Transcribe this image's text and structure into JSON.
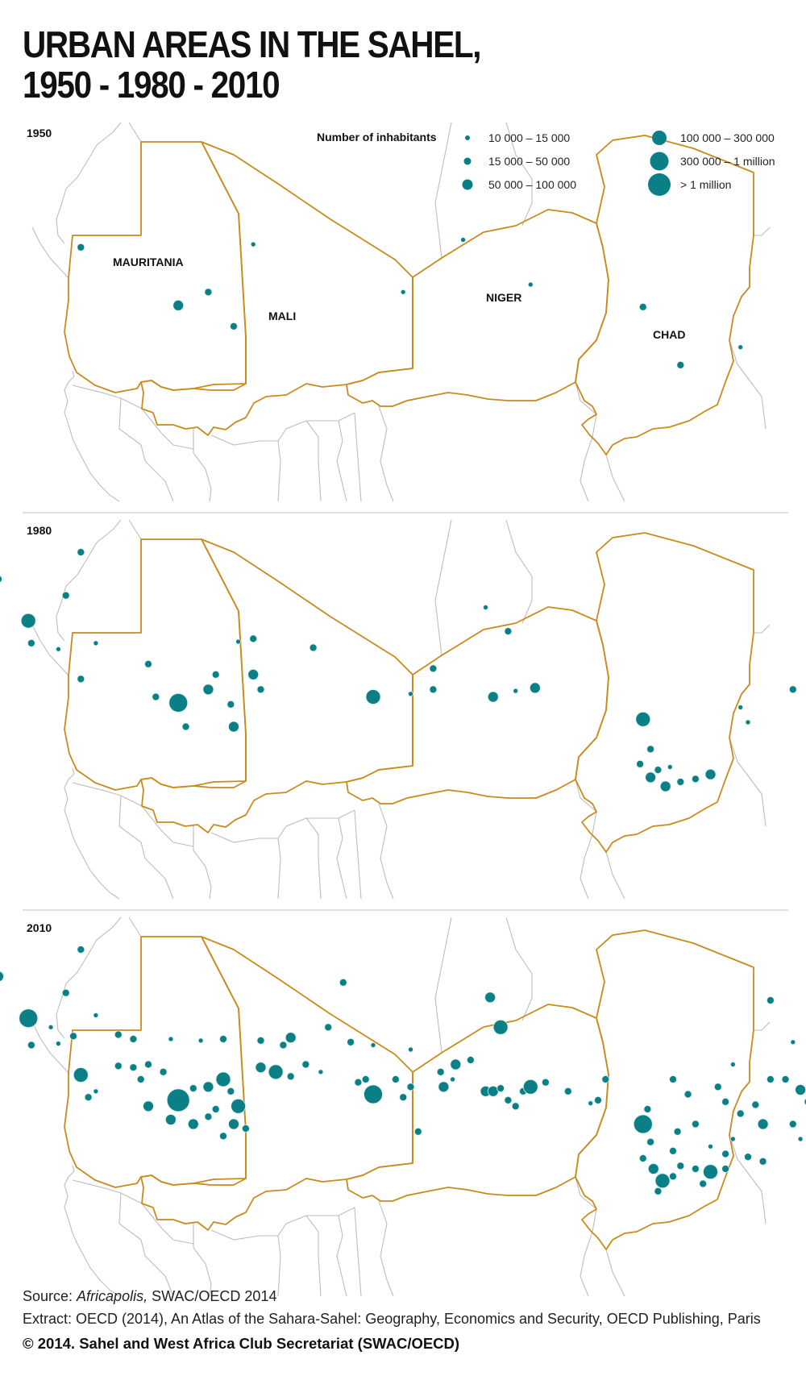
{
  "title_lines": [
    "URBAN AREAS IN THE SAHEL,",
    "1950 - 1980 - 2010"
  ],
  "legend": {
    "title": "Number of inhabitants",
    "classes": [
      {
        "label": "10 000 – 15 000",
        "size_class": 1
      },
      {
        "label": "15 000 – 50 000",
        "size_class": 2
      },
      {
        "label": "50 000 – 100 000",
        "size_class": 3
      },
      {
        "label": "100 000 – 300 000",
        "size_class": 4
      },
      {
        "label": "300 000 – 1 million",
        "size_class": 5
      },
      {
        "label": "> 1 million",
        "size_class": 6
      }
    ]
  },
  "colors": {
    "city_fill": "#0b7f86",
    "city_stroke": "#d9eeee",
    "sahel_border": "#c98a1e",
    "other_border": "#bdbdbd",
    "divider": "#cfcfcf"
  },
  "country_labels": [
    "MAURITANIA",
    "MALI",
    "NIGER",
    "CHAD"
  ],
  "panels": [
    {
      "year": "1950",
      "show_labels": true,
      "cities": [
        {
          "lon": -14.5,
          "lat": 16.5,
          "size_class": 2
        },
        {
          "lon": -8.0,
          "lat": 12.6,
          "size_class": 3
        },
        {
          "lon": -6.0,
          "lat": 13.5,
          "size_class": 2
        },
        {
          "lon": -3.0,
          "lat": 16.7,
          "size_class": 1
        },
        {
          "lon": -4.3,
          "lat": 11.2,
          "size_class": 2
        },
        {
          "lon": 7.0,
          "lat": 13.5,
          "size_class": 1
        },
        {
          "lon": 11.0,
          "lat": 17.0,
          "size_class": 1
        },
        {
          "lon": 15.5,
          "lat": 14.0,
          "size_class": 1
        },
        {
          "lon": 23.0,
          "lat": 12.5,
          "size_class": 2
        },
        {
          "lon": 25.5,
          "lat": 8.6,
          "size_class": 2
        },
        {
          "lon": 29.5,
          "lat": 9.8,
          "size_class": 1
        }
      ]
    },
    {
      "year": "1980",
      "show_labels": false,
      "cities": [
        {
          "lon": -14.5,
          "lat": 22.7,
          "size_class": 2
        },
        {
          "lon": -20.0,
          "lat": 20.9,
          "size_class": 2
        },
        {
          "lon": -15.5,
          "lat": 19.8,
          "size_class": 2
        },
        {
          "lon": -18.0,
          "lat": 18.1,
          "size_class": 4
        },
        {
          "lon": -17.8,
          "lat": 16.6,
          "size_class": 2
        },
        {
          "lon": -16.0,
          "lat": 16.2,
          "size_class": 1
        },
        {
          "lon": -13.5,
          "lat": 16.6,
          "size_class": 1
        },
        {
          "lon": -10.0,
          "lat": 15.2,
          "size_class": 2
        },
        {
          "lon": -14.5,
          "lat": 14.2,
          "size_class": 2
        },
        {
          "lon": -9.5,
          "lat": 13.0,
          "size_class": 2
        },
        {
          "lon": -8.0,
          "lat": 12.6,
          "size_class": 5
        },
        {
          "lon": -6.0,
          "lat": 13.5,
          "size_class": 3
        },
        {
          "lon": -5.5,
          "lat": 14.5,
          "size_class": 2
        },
        {
          "lon": -4.0,
          "lat": 16.7,
          "size_class": 1
        },
        {
          "lon": -3.0,
          "lat": 16.9,
          "size_class": 2
        },
        {
          "lon": -3.0,
          "lat": 14.5,
          "size_class": 3
        },
        {
          "lon": -2.5,
          "lat": 13.5,
          "size_class": 2
        },
        {
          "lon": -4.5,
          "lat": 12.5,
          "size_class": 2
        },
        {
          "lon": -7.5,
          "lat": 11.0,
          "size_class": 2
        },
        {
          "lon": -4.3,
          "lat": 11.0,
          "size_class": 3
        },
        {
          "lon": 1.0,
          "lat": 16.3,
          "size_class": 2
        },
        {
          "lon": 5.0,
          "lat": 13.0,
          "size_class": 4
        },
        {
          "lon": 7.5,
          "lat": 13.2,
          "size_class": 1
        },
        {
          "lon": 9.0,
          "lat": 13.5,
          "size_class": 2
        },
        {
          "lon": 9.0,
          "lat": 14.9,
          "size_class": 2
        },
        {
          "lon": 13.0,
          "lat": 13.0,
          "size_class": 3
        },
        {
          "lon": 14.5,
          "lat": 13.4,
          "size_class": 1
        },
        {
          "lon": 15.8,
          "lat": 13.6,
          "size_class": 3
        },
        {
          "lon": 14.0,
          "lat": 17.4,
          "size_class": 2
        },
        {
          "lon": 12.5,
          "lat": 19.0,
          "size_class": 1
        },
        {
          "lon": 23.0,
          "lat": 11.5,
          "size_class": 4
        },
        {
          "lon": 23.5,
          "lat": 9.5,
          "size_class": 2
        },
        {
          "lon": 22.8,
          "lat": 8.5,
          "size_class": 2
        },
        {
          "lon": 24.0,
          "lat": 8.1,
          "size_class": 2
        },
        {
          "lon": 24.8,
          "lat": 8.3,
          "size_class": 1
        },
        {
          "lon": 23.5,
          "lat": 7.6,
          "size_class": 3
        },
        {
          "lon": 24.5,
          "lat": 7.0,
          "size_class": 3
        },
        {
          "lon": 25.5,
          "lat": 7.3,
          "size_class": 2
        },
        {
          "lon": 26.5,
          "lat": 7.5,
          "size_class": 2
        },
        {
          "lon": 27.5,
          "lat": 7.8,
          "size_class": 3
        },
        {
          "lon": 29.5,
          "lat": 12.3,
          "size_class": 1
        },
        {
          "lon": 30.0,
          "lat": 11.3,
          "size_class": 1
        },
        {
          "lon": 33.0,
          "lat": 13.5,
          "size_class": 2
        }
      ]
    },
    {
      "year": "2010",
      "show_labels": false,
      "cities": [
        {
          "lon": -14.5,
          "lat": 22.7,
          "size_class": 2
        },
        {
          "lon": -20.0,
          "lat": 20.9,
          "size_class": 3
        },
        {
          "lon": -15.5,
          "lat": 19.8,
          "size_class": 2
        },
        {
          "lon": -18.0,
          "lat": 18.1,
          "size_class": 5
        },
        {
          "lon": -16.5,
          "lat": 17.5,
          "size_class": 1
        },
        {
          "lon": -15.0,
          "lat": 16.9,
          "size_class": 2
        },
        {
          "lon": -16.0,
          "lat": 16.4,
          "size_class": 1
        },
        {
          "lon": -13.5,
          "lat": 18.3,
          "size_class": 1
        },
        {
          "lon": -12.0,
          "lat": 17.0,
          "size_class": 2
        },
        {
          "lon": -11.0,
          "lat": 16.7,
          "size_class": 2
        },
        {
          "lon": -17.8,
          "lat": 16.3,
          "size_class": 2
        },
        {
          "lon": -8.5,
          "lat": 16.7,
          "size_class": 1
        },
        {
          "lon": -6.5,
          "lat": 16.6,
          "size_class": 1
        },
        {
          "lon": -5.0,
          "lat": 16.7,
          "size_class": 2
        },
        {
          "lon": -14.5,
          "lat": 14.3,
          "size_class": 4
        },
        {
          "lon": -13.5,
          "lat": 13.2,
          "size_class": 1
        },
        {
          "lon": -12.0,
          "lat": 14.9,
          "size_class": 2
        },
        {
          "lon": -11.0,
          "lat": 14.8,
          "size_class": 2
        },
        {
          "lon": -10.0,
          "lat": 15.0,
          "size_class": 2
        },
        {
          "lon": -10.5,
          "lat": 14.0,
          "size_class": 2
        },
        {
          "lon": -9.0,
          "lat": 14.5,
          "size_class": 2
        },
        {
          "lon": -14.0,
          "lat": 12.8,
          "size_class": 2
        },
        {
          "lon": -10.0,
          "lat": 12.2,
          "size_class": 3
        },
        {
          "lon": -8.0,
          "lat": 12.6,
          "size_class": 6
        },
        {
          "lon": -7.0,
          "lat": 13.4,
          "size_class": 2
        },
        {
          "lon": -6.0,
          "lat": 13.5,
          "size_class": 3
        },
        {
          "lon": -5.0,
          "lat": 14.0,
          "size_class": 4
        },
        {
          "lon": -4.5,
          "lat": 13.2,
          "size_class": 2
        },
        {
          "lon": -4.0,
          "lat": 12.2,
          "size_class": 4
        },
        {
          "lon": -5.5,
          "lat": 12.0,
          "size_class": 2
        },
        {
          "lon": -2.5,
          "lat": 14.8,
          "size_class": 3
        },
        {
          "lon": -1.5,
          "lat": 14.5,
          "size_class": 4
        },
        {
          "lon": -0.5,
          "lat": 14.2,
          "size_class": 2
        },
        {
          "lon": 0.5,
          "lat": 15.0,
          "size_class": 2
        },
        {
          "lon": 1.5,
          "lat": 14.5,
          "size_class": 1
        },
        {
          "lon": -1.0,
          "lat": 16.3,
          "size_class": 2
        },
        {
          "lon": -0.5,
          "lat": 16.8,
          "size_class": 3
        },
        {
          "lon": -2.5,
          "lat": 16.6,
          "size_class": 2
        },
        {
          "lon": -8.5,
          "lat": 11.3,
          "size_class": 3
        },
        {
          "lon": -7.0,
          "lat": 11.0,
          "size_class": 3
        },
        {
          "lon": -6.0,
          "lat": 11.5,
          "size_class": 2
        },
        {
          "lon": -4.3,
          "lat": 11.0,
          "size_class": 3
        },
        {
          "lon": -5.0,
          "lat": 10.2,
          "size_class": 2
        },
        {
          "lon": -3.5,
          "lat": 10.7,
          "size_class": 2
        },
        {
          "lon": 2.0,
          "lat": 17.5,
          "size_class": 2
        },
        {
          "lon": 3.5,
          "lat": 16.5,
          "size_class": 2
        },
        {
          "lon": 5.0,
          "lat": 16.3,
          "size_class": 1
        },
        {
          "lon": 7.5,
          "lat": 16.0,
          "size_class": 1
        },
        {
          "lon": 3.0,
          "lat": 20.5,
          "size_class": 2
        },
        {
          "lon": 4.0,
          "lat": 13.8,
          "size_class": 2
        },
        {
          "lon": 5.0,
          "lat": 13.0,
          "size_class": 5
        },
        {
          "lon": 4.5,
          "lat": 14.0,
          "size_class": 2
        },
        {
          "lon": 6.5,
          "lat": 14.0,
          "size_class": 2
        },
        {
          "lon": 7.0,
          "lat": 12.8,
          "size_class": 2
        },
        {
          "lon": 7.5,
          "lat": 13.5,
          "size_class": 2
        },
        {
          "lon": 8.0,
          "lat": 10.5,
          "size_class": 2
        },
        {
          "lon": 9.5,
          "lat": 14.5,
          "size_class": 2
        },
        {
          "lon": 9.7,
          "lat": 13.5,
          "size_class": 3
        },
        {
          "lon": 10.3,
          "lat": 14.0,
          "size_class": 1
        },
        {
          "lon": 10.5,
          "lat": 15.0,
          "size_class": 3
        },
        {
          "lon": 11.5,
          "lat": 15.3,
          "size_class": 2
        },
        {
          "lon": 12.5,
          "lat": 13.2,
          "size_class": 3
        },
        {
          "lon": 13.0,
          "lat": 13.2,
          "size_class": 3
        },
        {
          "lon": 13.5,
          "lat": 13.4,
          "size_class": 2
        },
        {
          "lon": 14.0,
          "lat": 12.6,
          "size_class": 2
        },
        {
          "lon": 14.5,
          "lat": 12.2,
          "size_class": 2
        },
        {
          "lon": 15.0,
          "lat": 13.2,
          "size_class": 2
        },
        {
          "lon": 15.5,
          "lat": 13.5,
          "size_class": 4
        },
        {
          "lon": 16.5,
          "lat": 13.8,
          "size_class": 2
        },
        {
          "lon": 18.0,
          "lat": 13.2,
          "size_class": 2
        },
        {
          "lon": 19.5,
          "lat": 12.4,
          "size_class": 1
        },
        {
          "lon": 20.0,
          "lat": 12.6,
          "size_class": 2
        },
        {
          "lon": 20.5,
          "lat": 14.0,
          "size_class": 2
        },
        {
          "lon": 12.8,
          "lat": 19.5,
          "size_class": 3
        },
        {
          "lon": 13.5,
          "lat": 17.5,
          "size_class": 4
        },
        {
          "lon": 23.0,
          "lat": 11.0,
          "size_class": 5
        },
        {
          "lon": 23.3,
          "lat": 12.0,
          "size_class": 2
        },
        {
          "lon": 23.5,
          "lat": 9.8,
          "size_class": 2
        },
        {
          "lon": 23.0,
          "lat": 8.7,
          "size_class": 2
        },
        {
          "lon": 23.7,
          "lat": 8.0,
          "size_class": 3
        },
        {
          "lon": 24.3,
          "lat": 7.2,
          "size_class": 4
        },
        {
          "lon": 25.0,
          "lat": 7.5,
          "size_class": 2
        },
        {
          "lon": 24.0,
          "lat": 6.5,
          "size_class": 2
        },
        {
          "lon": 25.5,
          "lat": 8.2,
          "size_class": 2
        },
        {
          "lon": 26.5,
          "lat": 8.0,
          "size_class": 2
        },
        {
          "lon": 27.5,
          "lat": 7.8,
          "size_class": 4
        },
        {
          "lon": 28.5,
          "lat": 8.0,
          "size_class": 2
        },
        {
          "lon": 27.0,
          "lat": 7.0,
          "size_class": 2
        },
        {
          "lon": 25.0,
          "lat": 9.2,
          "size_class": 2
        },
        {
          "lon": 25.3,
          "lat": 10.5,
          "size_class": 2
        },
        {
          "lon": 25.0,
          "lat": 14.0,
          "size_class": 2
        },
        {
          "lon": 26.0,
          "lat": 13.0,
          "size_class": 2
        },
        {
          "lon": 26.5,
          "lat": 11.0,
          "size_class": 2
        },
        {
          "lon": 28.0,
          "lat": 13.5,
          "size_class": 2
        },
        {
          "lon": 28.5,
          "lat": 12.5,
          "size_class": 2
        },
        {
          "lon": 29.5,
          "lat": 11.7,
          "size_class": 2
        },
        {
          "lon": 30.5,
          "lat": 12.3,
          "size_class": 2
        },
        {
          "lon": 31.0,
          "lat": 11.0,
          "size_class": 3
        },
        {
          "lon": 29.0,
          "lat": 10.0,
          "size_class": 1
        },
        {
          "lon": 30.0,
          "lat": 8.8,
          "size_class": 2
        },
        {
          "lon": 31.0,
          "lat": 8.5,
          "size_class": 2
        },
        {
          "lon": 28.5,
          "lat": 9.0,
          "size_class": 2
        },
        {
          "lon": 27.5,
          "lat": 9.5,
          "size_class": 1
        },
        {
          "lon": 29.0,
          "lat": 15.0,
          "size_class": 1
        },
        {
          "lon": 31.5,
          "lat": 14.0,
          "size_class": 2
        },
        {
          "lon": 32.5,
          "lat": 14.0,
          "size_class": 2
        },
        {
          "lon": 33.5,
          "lat": 13.3,
          "size_class": 3
        },
        {
          "lon": 34.5,
          "lat": 14.5,
          "size_class": 2
        },
        {
          "lon": 35.0,
          "lat": 15.0,
          "size_class": 2
        },
        {
          "lon": 35.3,
          "lat": 14.0,
          "size_class": 2
        },
        {
          "lon": 34.0,
          "lat": 12.5,
          "size_class": 2
        },
        {
          "lon": 34.5,
          "lat": 11.8,
          "size_class": 2
        },
        {
          "lon": 33.0,
          "lat": 11.0,
          "size_class": 2
        },
        {
          "lon": 33.5,
          "lat": 10.0,
          "size_class": 1
        },
        {
          "lon": 34.2,
          "lat": 12.8,
          "size_class": 2
        },
        {
          "lon": 31.5,
          "lat": 19.3,
          "size_class": 2
        },
        {
          "lon": 33.0,
          "lat": 16.5,
          "size_class": 1
        }
      ]
    }
  ],
  "footer": {
    "source_prefix": "Source: ",
    "source_italic": "Africapolis,",
    "source_rest": " SWAC/OECD 2014",
    "extract": "Extract: OECD (2014), An Atlas of the Sahara-Sahel: Geography, Economics  and Security, OECD Publishing, Paris",
    "copyright": "© 2014. Sahel and West Africa Club Secretariat (SWAC/OECD)"
  }
}
